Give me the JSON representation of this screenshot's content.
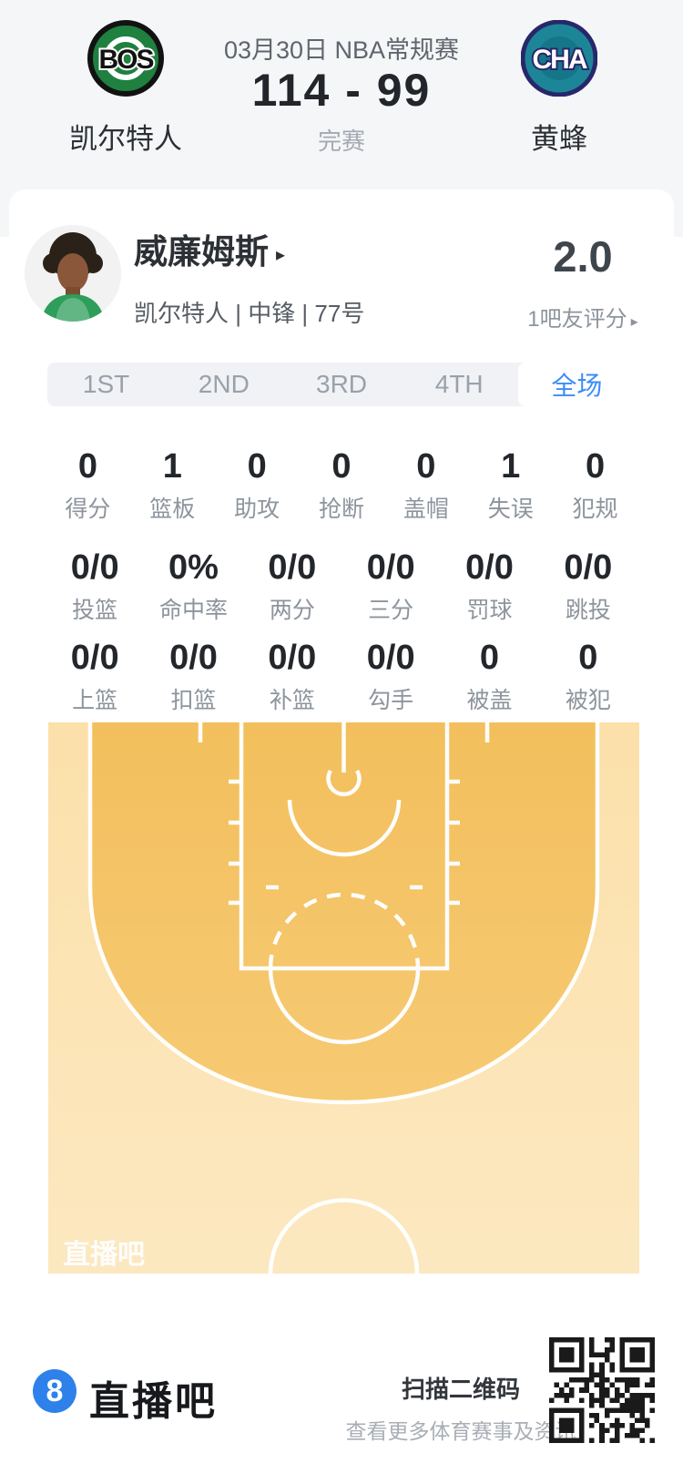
{
  "header": {
    "date_competition": "03月30日 NBA常规赛",
    "score": "114 - 99",
    "status": "完赛",
    "home": {
      "abbr": "BOS",
      "name": "凯尔特人"
    },
    "away": {
      "abbr": "CHA",
      "name": "黄蜂"
    }
  },
  "player": {
    "name": "威廉姆斯",
    "name_arrow": "▸",
    "info": "凯尔特人 | 中锋 | 77号",
    "rating": "2.0",
    "rating_label": "1吧友评分",
    "rating_arrow": "▸"
  },
  "tabs": [
    {
      "label": "1ST"
    },
    {
      "label": "2ND"
    },
    {
      "label": "3RD"
    },
    {
      "label": "4TH"
    },
    {
      "label": "全场"
    }
  ],
  "stats": {
    "row1": [
      {
        "value": "0",
        "label": "得分"
      },
      {
        "value": "1",
        "label": "篮板"
      },
      {
        "value": "0",
        "label": "助攻"
      },
      {
        "value": "0",
        "label": "抢断"
      },
      {
        "value": "0",
        "label": "盖帽"
      },
      {
        "value": "1",
        "label": "失误"
      },
      {
        "value": "0",
        "label": "犯规"
      }
    ],
    "row2": [
      {
        "value": "0/0",
        "label": "投篮"
      },
      {
        "value": "0%",
        "label": "命中率"
      },
      {
        "value": "0/0",
        "label": "两分"
      },
      {
        "value": "0/0",
        "label": "三分"
      },
      {
        "value": "0/0",
        "label": "罚球"
      },
      {
        "value": "0/0",
        "label": "跳投"
      }
    ],
    "row3": [
      {
        "value": "0/0",
        "label": "上篮"
      },
      {
        "value": "0/0",
        "label": "扣篮"
      },
      {
        "value": "0/0",
        "label": "补篮"
      },
      {
        "value": "0/0",
        "label": "勾手"
      },
      {
        "value": "0",
        "label": "被盖"
      },
      {
        "value": "0",
        "label": "被犯"
      }
    ]
  },
  "court": {
    "watermark": "直播吧",
    "color_outer": "#fbe2b0",
    "color_inner": "#f4c365",
    "line_color": "#ffffff"
  },
  "footer": {
    "logo_glyph": "8",
    "brand": "直播吧",
    "qr_title": "扫描二维码",
    "qr_subtitle": "查看更多体育赛事及资讯"
  },
  "colors": {
    "accent_blue": "#3b8cf8",
    "header_bg": "#f5f6f8",
    "brand_blue": "#2e81ea"
  }
}
